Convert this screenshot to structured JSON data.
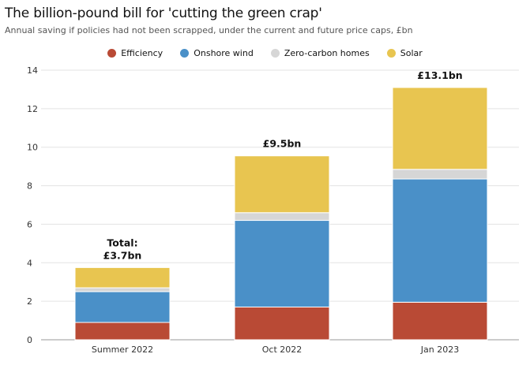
{
  "chart_data": {
    "type": "bar",
    "stacked": true,
    "title": "The billion-pound bill for 'cutting the green crap'",
    "subtitle": "Annual saving if policies had not been scrapped, under the current and future price caps, £bn",
    "categories": [
      "Summer 2022",
      "Oct 2022",
      "Jan 2023"
    ],
    "series": [
      {
        "name": "Efficiency",
        "color": "#b94a35",
        "values": [
          0.9,
          1.7,
          1.95
        ]
      },
      {
        "name": "Onshore wind",
        "color": "#4a90c8",
        "values": [
          1.6,
          4.5,
          6.4
        ]
      },
      {
        "name": "Zero-carbon homes",
        "color": "#d6d6d6",
        "values": [
          0.2,
          0.4,
          0.5
        ]
      },
      {
        "name": "Solar",
        "color": "#e8c550",
        "values": [
          1.05,
          2.95,
          4.25
        ]
      }
    ],
    "totals": [
      {
        "lines": [
          "Total:",
          "£3.7bn"
        ]
      },
      {
        "lines": [
          "£9.5bn"
        ]
      },
      {
        "lines": [
          "£13.1bn"
        ]
      }
    ],
    "ylim": [
      0,
      14
    ],
    "yticks": [
      0,
      2,
      4,
      6,
      8,
      10,
      12,
      14
    ],
    "xlabel": "",
    "ylabel": "",
    "grid": true,
    "legend_position": "top-center"
  }
}
